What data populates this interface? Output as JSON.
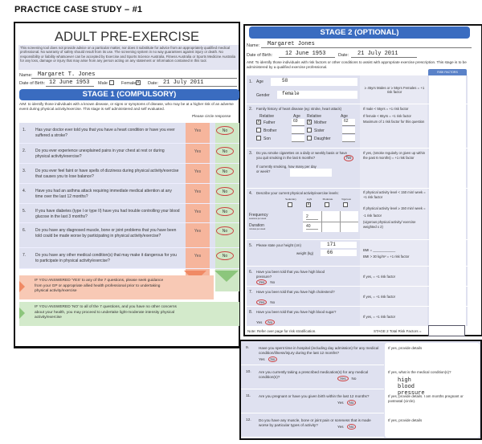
{
  "page_title": "PRACTICE CASE STUDY – #1",
  "form": {
    "title": "ADULT PRE-EXERCISE SCREENING TOOL",
    "disclaimer": "This screening tool does not provide advice on a particular matter, nor does it substitute for advice from an appropriately qualified medical professional. No warranty of safety should result from its use. The screening system in no way guarantees against injury or death. No responsibility or liability whatsoever can be accepted by Exercise and Sports Science Australia, Fitness Australia or Sports Medicine Australia for any loss, damage or injury that may arise from any person acting on any statement or information contained in this tool.",
    "name_label": "Name:",
    "name": "Margaret T. Jones",
    "dob_label": "Date of Birth:",
    "dob": "12 June 1953",
    "male_label": "Male",
    "female_label": "Female",
    "female_mark": "X",
    "date_label": "Date:",
    "date": "21 July 2011"
  },
  "stage1": {
    "title": "STAGE 1 (COMPULSORY)",
    "aim": "AIM: to identify those individuals with a known disease, or signs or symptoms of disease, who may be at a higher risk of an adverse event during physical activity/exercise. This stage is self administered and self evaluated.",
    "circle_prompt": "Please circle response",
    "yes": "Yes",
    "no": "No",
    "questions": [
      {
        "n": "1.",
        "text": "Has your doctor ever told you that you have a heart condition or have you ever suffered a stroke?",
        "answer": "No"
      },
      {
        "n": "2.",
        "text": "Do you ever experience unexplained pains in your chest at rest or during physical activity/exercise?",
        "answer": "No"
      },
      {
        "n": "3.",
        "text": "Do you ever feel faint or have spells of dizziness during physical activity/exercise that causes you to lose balance?",
        "answer": "No"
      },
      {
        "n": "4.",
        "text": "Have you had an asthma attack requiring immediate medical attention at any time over the last 12 months?",
        "answer": "No"
      },
      {
        "n": "5.",
        "text": "If you have diabetes (type I or type II) have you had trouble controlling your blood glucose in the last 3 months?",
        "answer": "No"
      },
      {
        "n": "6.",
        "text": "Do you have any diagnosed muscle, bone or joint problems that you have been told could be made worse by participating in physical activity/exercise?",
        "answer": "No"
      },
      {
        "n": "7.",
        "text": "Do you have any other medical condition(s) that may make it dangerous for you to participate in physical activity/exercise?",
        "answer": "No"
      }
    ],
    "yes_outcome": "IF YOU ANSWERED 'YES' to any of the 7 questions, please seek guidance from your GP or appropriate allied health professional prior to undertaking physical activity/exercise",
    "no_outcome": "IF YOU ANSWERED 'NO' to all of the 7 questions, and you have no other concerns about your health, you may proceed to undertake light-moderate intensity physical activity/exercise"
  },
  "stage2": {
    "title": "STAGE 2 (OPTIONAL)",
    "name_label": "Name:",
    "name": "Margaret Jones",
    "dob_label": "Date of Birth:",
    "dob": "12 June 1953",
    "date_label": "Date:",
    "date": "21 July 2011",
    "aim": "AIM: To identify those individuals with risk factors or other conditions to assist with appropriate exercise prescription. This stage is to be administered by a qualified exercise professional.",
    "risk_header": "RISK FACTORS",
    "q1": {
      "n": "1.",
      "age_label": "Age",
      "age": "58",
      "gender_label": "Gender",
      "gender": "female",
      "criteria": "≥ 45yrs Males or ≥ 55yrs Females = +1 risk factor"
    },
    "q2": {
      "n": "2.",
      "text": "Family history of heart disease (eg: stroke, heart attack)",
      "relative_label": "Relative",
      "age_label": "Age",
      "relatives": [
        {
          "name": "Father",
          "checked": "X",
          "age": "69"
        },
        {
          "name": "Mother",
          "checked": "X",
          "age": "62"
        },
        {
          "name": "Brother",
          "checked": "",
          "age": ""
        },
        {
          "name": "Sister",
          "checked": "",
          "age": ""
        },
        {
          "name": "Son",
          "checked": "",
          "age": ""
        },
        {
          "name": "Daughter",
          "checked": "",
          "age": ""
        }
      ],
      "criteria": [
        "If male < 55yrs = +1 risk factor",
        "If female < 65yrs = +1 risk factor",
        "Maximum of 1 risk factor for this question"
      ]
    },
    "q3": {
      "n": "3.",
      "text": "Do you smoke cigarettes on a daily or weekly basis or have you quit smoking in the last 6 months?",
      "yes": "Yes",
      "no": "No",
      "answer": "No",
      "sub": "If currently smoking, how many per day or week?",
      "criteria": "If yes, (smoke regularly or given up within the past 6 months) = +1 risk factor"
    },
    "q4": {
      "n": "4.",
      "text": "Describe your current physical activity/exercise levels:",
      "levels": [
        "Sedentary",
        "Light",
        "Moderate",
        "Vigorous"
      ],
      "checked_level": "Light",
      "check_mark": "X",
      "frequency_label": "Frequency",
      "frequency_sub": "sessions per week",
      "frequency": "2",
      "duration_label": "Duration",
      "duration_sub": "minutes per week",
      "duration": "40",
      "criteria": [
        "If physical activity level < 150 min/ week = +1 risk factor",
        "If physical activity level ≥ 150 min/ week = -1 risk factor",
        "(vigorous physical activity/ exercise weighted x 2)"
      ]
    },
    "q5": {
      "n": "5.",
      "height_label": "Please state your height (cm)",
      "height": "171",
      "weight_label": "weight (kg)",
      "weight": "66",
      "criteria": [
        "BMI = ____________",
        "BMI > 30 kg/m² = +1 risk factor"
      ]
    },
    "q6": {
      "n": "6.",
      "text": "Have you been told that you have high blood pressure?",
      "yes": "Yes",
      "no": "No",
      "answer": "Yes",
      "criteria": "If yes, = +1 risk factor"
    },
    "q7": {
      "n": "7.",
      "text": "Have you been told that you have high cholesterol?",
      "yes": "Yes",
      "no": "No",
      "answer": "Yes",
      "criteria": "If yes, = +1 risk factor"
    },
    "q8": {
      "n": "8.",
      "text": "Have you been told that you have high blood sugar?",
      "yes": "Yes",
      "no": "No",
      "answer": "No",
      "criteria": "If yes, = +1 risk factor"
    },
    "note": "Note: Refer over page for risk stratification.",
    "total_label": "STAGE 2 Total Risk Factors ="
  },
  "stage2_cont": [
    {
      "n": "9.",
      "text": "Have you spent time in hospital (including day admission) for any medical condition/illness/injury during the last 12 months?",
      "yes": "Yes",
      "no": "No",
      "answer": "No",
      "detail_label": "If yes, provide details",
      "detail": ""
    },
    {
      "n": "10.",
      "text": "Are you currently taking a prescribed medication(s) for any medical condition(s)?",
      "yes": "Yes",
      "no": "No",
      "answer": "Yes",
      "detail_label": "If yes, what is the medical condition(s)?",
      "detail": "high blood pressure"
    },
    {
      "n": "11.",
      "text": "Are you pregnant or have you given birth within the last 12 months?",
      "yes": "Yes",
      "no": "No",
      "answer": "No",
      "detail_label": "If yes, provide details. I am months pregnant or postnatal (circle).",
      "detail": ""
    },
    {
      "n": "12.",
      "text": "Do you have any muscle, bone or joint pain or soreness that is made worse by particular types of activity?",
      "yes": "Yes",
      "no": "No",
      "answer": "No",
      "detail_label": "If yes, provide details",
      "detail": ""
    }
  ],
  "colors": {
    "banner": "#3a6cc0",
    "yes_column": "#f6b59c",
    "no_column": "#cfe7c6",
    "question_bg": "#dfe1f0",
    "circle": "#cc4444"
  }
}
